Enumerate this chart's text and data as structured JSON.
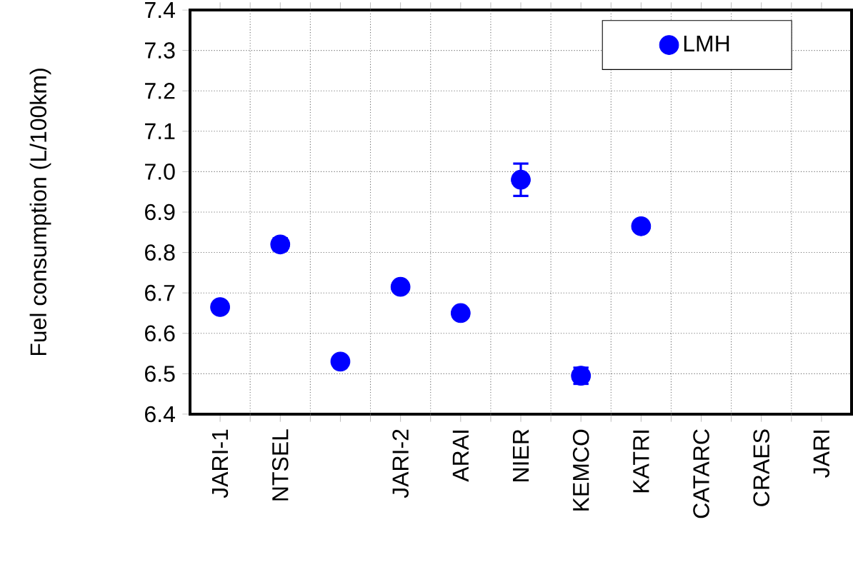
{
  "chart_data": {
    "type": "scatter",
    "ylabel": "Fuel consumption (L/100km)",
    "categories": [
      "JARI-1",
      "NTSEL",
      null,
      "JARI-2",
      "ARAI",
      "NIER",
      "KEMCO",
      "KATRI",
      "CATARC",
      "CRAES",
      "JARI"
    ],
    "series": [
      {
        "name": "LMH",
        "color": "#0000ff",
        "values": [
          6.665,
          6.82,
          6.53,
          6.715,
          6.65,
          6.98,
          6.495,
          6.865,
          null,
          null,
          null
        ],
        "errors": [
          0.01,
          0.015,
          null,
          null,
          0.01,
          0.04,
          0.02,
          null,
          null,
          null,
          null
        ]
      }
    ],
    "ylim": [
      6.4,
      7.4
    ],
    "yticks": [
      6.4,
      6.5,
      6.6,
      6.7,
      6.8,
      6.9,
      {
        "value": 7.0,
        "label": "7.0"
      },
      7.1,
      7.2,
      7.3,
      7.4
    ],
    "grid": true,
    "legend": "top right"
  }
}
